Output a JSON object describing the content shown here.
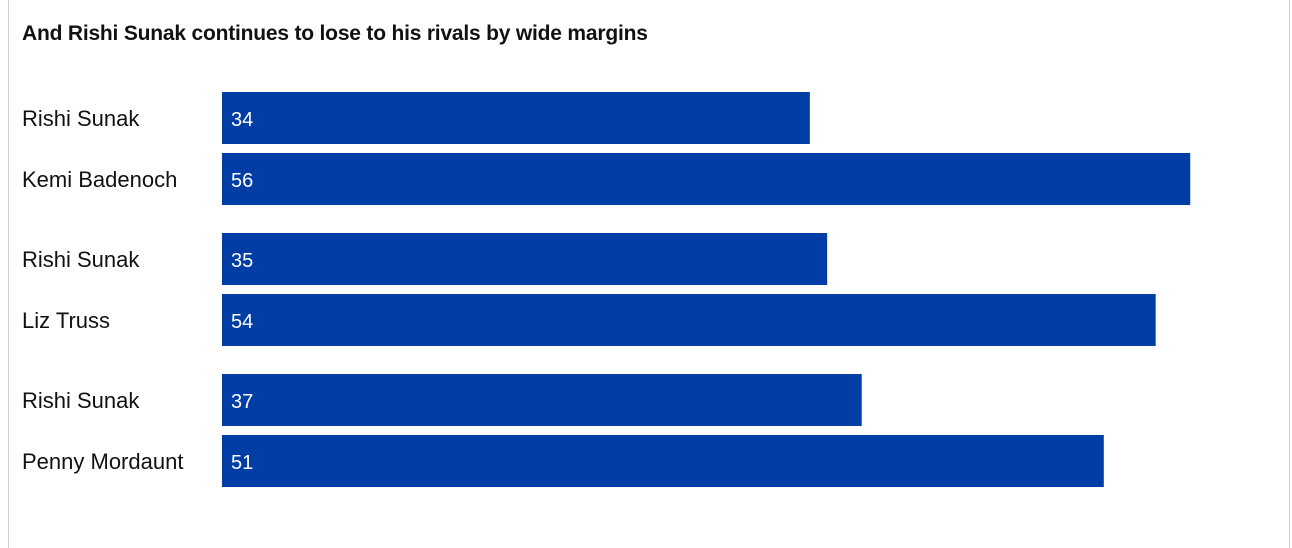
{
  "chart_data": {
    "type": "bar",
    "orientation": "horizontal",
    "title": "And Rishi Sunak continues to lose to his rivals by wide margins",
    "categories": [
      "Rishi Sunak",
      "Kemi Badenoch",
      "Rishi Sunak",
      "Liz Truss",
      "Rishi Sunak",
      "Penny Mordaunt"
    ],
    "values": [
      34,
      56,
      35,
      54,
      37,
      51
    ],
    "groups": [
      {
        "categories": [
          "Rishi Sunak",
          "Kemi Badenoch"
        ],
        "values": [
          34,
          56
        ]
      },
      {
        "categories": [
          "Rishi Sunak",
          "Liz Truss"
        ],
        "values": [
          35,
          54
        ]
      },
      {
        "categories": [
          "Rishi Sunak",
          "Penny Mordaunt"
        ],
        "values": [
          37,
          51
        ]
      }
    ],
    "xlim": [
      0,
      58
    ],
    "grid": false,
    "data_labels": true,
    "bar_color": "#003DA5",
    "label_color": "#ffffff"
  }
}
